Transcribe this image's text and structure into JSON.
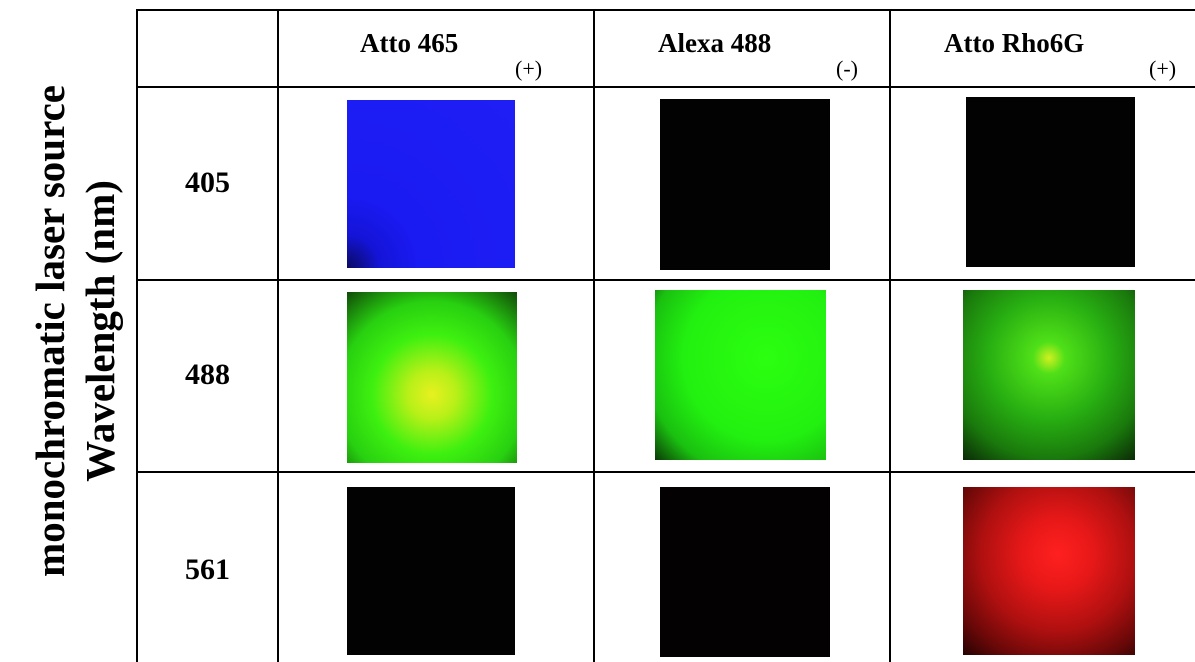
{
  "side_label": [
    "monochromatic laser source",
    "Wavelength (nm)"
  ],
  "columns": [
    {
      "name": "Atto 465",
      "sign": "(+)"
    },
    {
      "name": "Alexa 488",
      "sign": "(-)"
    },
    {
      "name": "Atto Rho6G",
      "sign": "(+)"
    }
  ],
  "rows": [
    "405",
    "488",
    "561"
  ]
}
